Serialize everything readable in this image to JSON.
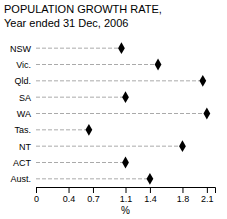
{
  "chart_data": {
    "type": "dot",
    "title": "POPULATION GROWTH RATE,",
    "subtitle": "Year ended 31 Dec, 2006",
    "categories": [
      "NSW",
      "Vic.",
      "Qld.",
      "SA",
      "WA",
      "Tas.",
      "NT",
      "ACT",
      "Aust."
    ],
    "values": [
      1.05,
      1.5,
      2.05,
      1.1,
      2.1,
      0.65,
      1.8,
      1.1,
      1.4
    ],
    "xlim": [
      0,
      2.2
    ],
    "xticks": [
      0,
      0.4,
      0.7,
      1.1,
      1.4,
      1.8,
      2.1
    ],
    "xlabel": "%",
    "marker": "diamond",
    "line_style": "dashed",
    "color": "#000000",
    "grid": false
  }
}
